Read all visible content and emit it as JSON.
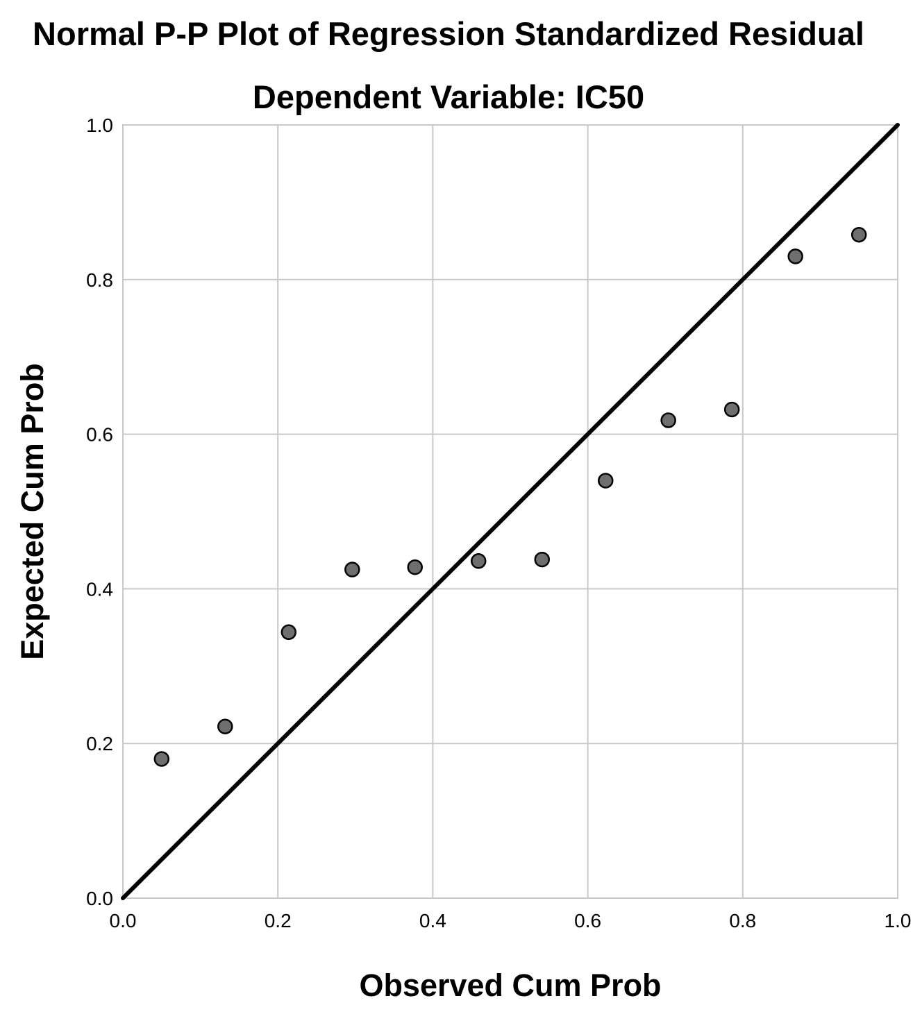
{
  "chart_data": {
    "type": "scatter",
    "title": "Normal P-P Plot of Regression Standardized Residual",
    "subtitle": "Dependent Variable: IC50",
    "xlabel": "Observed Cum Prob",
    "ylabel": "Expected Cum Prob",
    "xlim": [
      0.0,
      1.0
    ],
    "ylim": [
      0.0,
      1.0
    ],
    "xticks": [
      "0.0",
      "0.2",
      "0.4",
      "0.6",
      "0.8",
      "1.0"
    ],
    "yticks": [
      "0.0",
      "0.2",
      "0.4",
      "0.6",
      "0.8",
      "1.0"
    ],
    "grid": true,
    "reference_line": {
      "from": [
        0.0,
        0.0
      ],
      "to": [
        1.0,
        1.0
      ]
    },
    "series": [
      {
        "name": "Standardized Residual",
        "points": [
          {
            "x": 0.05,
            "y": 0.18
          },
          {
            "x": 0.132,
            "y": 0.222
          },
          {
            "x": 0.214,
            "y": 0.344
          },
          {
            "x": 0.296,
            "y": 0.425
          },
          {
            "x": 0.377,
            "y": 0.428
          },
          {
            "x": 0.459,
            "y": 0.436
          },
          {
            "x": 0.541,
            "y": 0.438
          },
          {
            "x": 0.623,
            "y": 0.54
          },
          {
            "x": 0.704,
            "y": 0.618
          },
          {
            "x": 0.786,
            "y": 0.632
          },
          {
            "x": 0.868,
            "y": 0.83
          },
          {
            "x": 0.95,
            "y": 0.858
          }
        ]
      }
    ],
    "colors": {
      "point_fill": "#6e6e6e",
      "point_stroke": "#000000",
      "reference_line": "#000000",
      "grid": "#c8c8c8"
    }
  }
}
